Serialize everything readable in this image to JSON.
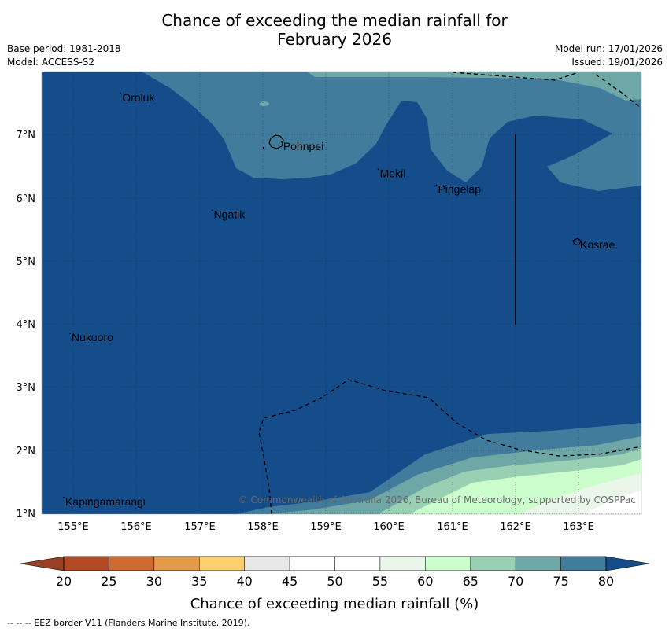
{
  "title": {
    "line1": "Chance of exceeding the median rainfall for",
    "line2": "February 2026"
  },
  "meta": {
    "base_period": "Base period: 1981-2018",
    "model": "Model: ACCESS-S2",
    "model_run": "Model run: 17/01/2026",
    "issued": "Issued: 19/01/2026"
  },
  "map": {
    "lon_range": [
      154.5,
      164.0
    ],
    "lat_range": [
      1.0,
      8.0
    ],
    "lon_ticks": [
      "155°E",
      "156°E",
      "157°E",
      "158°E",
      "159°E",
      "160°E",
      "161°E",
      "162°E",
      "163°E"
    ],
    "lat_ticks": [
      "1°N",
      "2°N",
      "3°N",
      "4°N",
      "5°N",
      "6°N",
      "7°N"
    ],
    "places": [
      {
        "name": "Oroluk",
        "lon": 155.75,
        "lat": 7.65
      },
      {
        "name": "Pohnpei",
        "lon": 158.3,
        "lat": 6.88
      },
      {
        "name": "Mokil",
        "lon": 159.83,
        "lat": 6.45
      },
      {
        "name": "Pingelap",
        "lon": 160.75,
        "lat": 6.2
      },
      {
        "name": "Ngatik",
        "lon": 157.2,
        "lat": 5.8
      },
      {
        "name": "Kosrae",
        "lon": 163.0,
        "lat": 5.32
      },
      {
        "name": "Nukuoro",
        "lon": 154.95,
        "lat": 3.85
      },
      {
        "name": "Kapingamarangi",
        "lon": 154.85,
        "lat": 1.25
      }
    ],
    "copyright": "© Commonwealth of Australia 2026, Bureau of Meteorology, supported by COSPPac"
  },
  "colorbar": {
    "ticks": [
      "20",
      "25",
      "30",
      "35",
      "40",
      "45",
      "50",
      "55",
      "60",
      "65",
      "70",
      "75",
      "80"
    ],
    "colors": [
      "#b34a25",
      "#cf6a32",
      "#e39a49",
      "#fdd06e",
      "#e8e8e8",
      "#ffffff",
      "#ffffff",
      "#eaf6ea",
      "#ccfdcc",
      "#99cfb2",
      "#6fa6a6",
      "#417c9c",
      "#154c8a"
    ],
    "label": "Chance of exceeding median rainfall (%)"
  },
  "footnote": "--  --  -- EEZ border V11 (Flanders Marine Institute, 2019)."
}
